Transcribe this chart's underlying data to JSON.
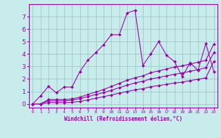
{
  "xlabel": "Windchill (Refroidissement éolien,°C)",
  "bg_color": "#c8ecec",
  "grid_color": "#a0c8c8",
  "line_color": "#9900aa",
  "marker_color": "#9900aa",
  "xlim": [
    -0.5,
    23.5
  ],
  "ylim": [
    -0.3,
    8.0
  ],
  "xticks": [
    0,
    1,
    2,
    3,
    4,
    5,
    6,
    7,
    8,
    9,
    10,
    11,
    12,
    13,
    14,
    15,
    16,
    17,
    18,
    19,
    20,
    21,
    22,
    23
  ],
  "yticks": [
    0,
    1,
    2,
    3,
    4,
    5,
    6,
    7
  ],
  "series": [
    {
      "x": [
        0,
        1,
        2,
        3,
        4,
        5,
        6,
        7,
        8,
        9,
        10,
        11,
        12,
        13,
        14,
        15,
        16,
        17,
        18,
        19,
        20,
        21,
        22,
        23
      ],
      "y": [
        0.0,
        0.65,
        1.4,
        0.9,
        1.35,
        1.35,
        2.6,
        3.5,
        4.1,
        4.75,
        5.55,
        5.55,
        7.3,
        7.5,
        3.1,
        4.0,
        5.0,
        3.9,
        3.4,
        2.2,
        3.3,
        2.7,
        4.85,
        2.6
      ]
    },
    {
      "x": [
        0,
        1,
        2,
        3,
        4,
        5,
        6,
        7,
        8,
        9,
        10,
        11,
        12,
        13,
        14,
        15,
        16,
        17,
        18,
        19,
        20,
        21,
        22,
        23
      ],
      "y": [
        0.0,
        0.0,
        0.35,
        0.35,
        0.35,
        0.4,
        0.55,
        0.75,
        0.95,
        1.15,
        1.4,
        1.65,
        1.9,
        2.1,
        2.25,
        2.5,
        2.65,
        2.8,
        2.95,
        3.05,
        3.2,
        3.35,
        3.5,
        4.8
      ]
    },
    {
      "x": [
        0,
        1,
        2,
        3,
        4,
        5,
        6,
        7,
        8,
        9,
        10,
        11,
        12,
        13,
        14,
        15,
        16,
        17,
        18,
        19,
        20,
        21,
        22,
        23
      ],
      "y": [
        0.0,
        0.0,
        0.25,
        0.25,
        0.25,
        0.3,
        0.42,
        0.58,
        0.75,
        0.9,
        1.1,
        1.3,
        1.5,
        1.68,
        1.82,
        2.0,
        2.12,
        2.25,
        2.38,
        2.48,
        2.62,
        2.75,
        2.9,
        4.1
      ]
    },
    {
      "x": [
        0,
        1,
        2,
        3,
        4,
        5,
        6,
        7,
        8,
        9,
        10,
        11,
        12,
        13,
        14,
        15,
        16,
        17,
        18,
        19,
        20,
        21,
        22,
        23
      ],
      "y": [
        0.0,
        0.0,
        0.1,
        0.1,
        0.1,
        0.12,
        0.2,
        0.32,
        0.45,
        0.58,
        0.72,
        0.86,
        1.0,
        1.13,
        1.22,
        1.38,
        1.47,
        1.57,
        1.67,
        1.75,
        1.87,
        1.97,
        2.1,
        3.4
      ]
    }
  ]
}
